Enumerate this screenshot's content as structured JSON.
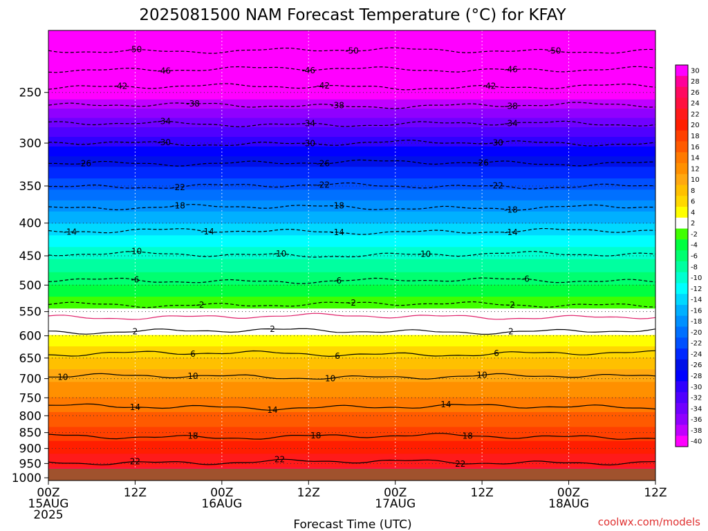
{
  "chart_data": {
    "type": "heatmap",
    "title": "2025081500 NAM Forecast Temperature (°C) for KFAY",
    "xlabel": "Forecast Time (UTC)",
    "ylabel": "",
    "x_ticks": [
      {
        "hour": 0,
        "line1": "00Z",
        "line2": "15AUG",
        "line3": "2025"
      },
      {
        "hour": 12,
        "line1": "12Z",
        "line2": "",
        "line3": ""
      },
      {
        "hour": 24,
        "line1": "00Z",
        "line2": "16AUG",
        "line3": ""
      },
      {
        "hour": 36,
        "line1": "12Z",
        "line2": "",
        "line3": ""
      },
      {
        "hour": 48,
        "line1": "00Z",
        "line2": "17AUG",
        "line3": ""
      },
      {
        "hour": 60,
        "line1": "12Z",
        "line2": "",
        "line3": ""
      },
      {
        "hour": 72,
        "line1": "00Z",
        "line2": "18AUG",
        "line3": ""
      },
      {
        "hour": 84,
        "line1": "12Z",
        "line2": "",
        "line3": ""
      }
    ],
    "xlim_hours": [
      0,
      84
    ],
    "y_ticks": [
      "250",
      "300",
      "350",
      "400",
      "450",
      "500",
      "550",
      "600",
      "650",
      "700",
      "750",
      "800",
      "850",
      "900",
      "950",
      "1000"
    ],
    "y_ticks_hpa": [
      250,
      300,
      350,
      400,
      450,
      500,
      550,
      600,
      650,
      700,
      750,
      800,
      850,
      900,
      950,
      1000
    ],
    "ylim_hpa": [
      200,
      1010
    ],
    "y_scale": "log-pressure (inverted)",
    "grid": true,
    "colorbar_ticks": [
      "30",
      "28",
      "26",
      "24",
      "22",
      "20",
      "18",
      "16",
      "14",
      "12",
      "10",
      "8",
      "6",
      "4",
      "2",
      "-2",
      "-4",
      "-6",
      "-8",
      "-10",
      "-12",
      "-14",
      "-16",
      "-18",
      "-20",
      "-22",
      "-24",
      "-26",
      "-28",
      "-30",
      "-32",
      "-34",
      "-36",
      "-38",
      "-40"
    ],
    "colorbar_colors": [
      "#ff00ff",
      "#ff0099",
      "#ff0a60",
      "#ff1040",
      "#ff1a1a",
      "#ff1e00",
      "#ff4000",
      "#ff5a00",
      "#ff7a00",
      "#ff9000",
      "#ffa810",
      "#ffc000",
      "#ffd800",
      "#ffff00",
      "#ffffff",
      "#40ff00",
      "#00ff40",
      "#00ff70",
      "#00ffa0",
      "#00ffd0",
      "#00ffff",
      "#00d8ff",
      "#00b0ff",
      "#0090ff",
      "#0070ff",
      "#0050ff",
      "#0028ff",
      "#0010e8",
      "#0000ff",
      "#3000ff",
      "#5000ff",
      "#7000ff",
      "#9000ff",
      "#c000ff",
      "#ff00ff"
    ],
    "temperature_profile": [
      {
        "hpa": 200,
        "temp": -52
      },
      {
        "hpa": 215,
        "temp": -50
      },
      {
        "hpa": 230,
        "temp": -46
      },
      {
        "hpa": 245,
        "temp": -42
      },
      {
        "hpa": 262,
        "temp": -38
      },
      {
        "hpa": 280,
        "temp": -34
      },
      {
        "hpa": 300,
        "temp": -30
      },
      {
        "hpa": 322,
        "temp": -26
      },
      {
        "hpa": 350,
        "temp": -22
      },
      {
        "hpa": 378,
        "temp": -18
      },
      {
        "hpa": 412,
        "temp": -14
      },
      {
        "hpa": 448,
        "temp": -10
      },
      {
        "hpa": 492,
        "temp": -6
      },
      {
        "hpa": 536,
        "temp": -2
      },
      {
        "hpa": 560,
        "temp": 0
      },
      {
        "hpa": 590,
        "temp": 2
      },
      {
        "hpa": 640,
        "temp": 6
      },
      {
        "hpa": 695,
        "temp": 10
      },
      {
        "hpa": 775,
        "temp": 14
      },
      {
        "hpa": 862,
        "temp": 18
      },
      {
        "hpa": 945,
        "temp": 22
      },
      {
        "hpa": 1000,
        "temp": 25
      }
    ],
    "contours": [
      {
        "label": "-50",
        "hpa": 215,
        "style": "dashed",
        "label_hours": [
          12,
          42,
          70
        ]
      },
      {
        "label": "-46",
        "hpa": 230,
        "style": "dashed",
        "label_hours": [
          16,
          36,
          64
        ]
      },
      {
        "label": "-42",
        "hpa": 245,
        "style": "dashed",
        "label_hours": [
          10,
          38,
          61
        ]
      },
      {
        "label": "-38",
        "hpa": 262,
        "style": "dashed",
        "label_hours": [
          20,
          40,
          64
        ]
      },
      {
        "label": "-34",
        "hpa": 280,
        "style": "dashed",
        "label_hours": [
          16,
          36,
          64
        ]
      },
      {
        "label": "-30",
        "hpa": 300,
        "style": "dashed",
        "label_hours": [
          16,
          36,
          62
        ]
      },
      {
        "label": "-26",
        "hpa": 322,
        "style": "dashed",
        "label_hours": [
          5,
          38,
          60
        ]
      },
      {
        "label": "-22",
        "hpa": 350,
        "style": "dashed",
        "label_hours": [
          18,
          38,
          62
        ]
      },
      {
        "label": "-18",
        "hpa": 378,
        "style": "dashed",
        "label_hours": [
          18,
          40,
          64
        ]
      },
      {
        "label": "-14",
        "hpa": 412,
        "style": "dashed",
        "label_hours": [
          3,
          22,
          40,
          64
        ]
      },
      {
        "label": "-10",
        "hpa": 448,
        "style": "dashed",
        "label_hours": [
          12,
          32,
          52
        ]
      },
      {
        "label": "-6",
        "hpa": 492,
        "style": "dashed",
        "label_hours": [
          12,
          40,
          66
        ]
      },
      {
        "label": "-2",
        "hpa": 536,
        "style": "dashed",
        "label_hours": [
          21,
          42,
          64
        ]
      },
      {
        "label": "0",
        "hpa": 560,
        "style": "magenta",
        "label_hours": []
      },
      {
        "label": "2",
        "hpa": 590,
        "style": "solid",
        "label_hours": [
          12,
          31,
          64
        ]
      },
      {
        "label": "6",
        "hpa": 640,
        "style": "solid",
        "label_hours": [
          20,
          40,
          62
        ]
      },
      {
        "label": "10",
        "hpa": 695,
        "style": "solid",
        "label_hours": [
          2,
          20,
          39,
          60
        ]
      },
      {
        "label": "14",
        "hpa": 775,
        "style": "solid",
        "label_hours": [
          12,
          31,
          55
        ]
      },
      {
        "label": "18",
        "hpa": 862,
        "style": "solid",
        "label_hours": [
          20,
          37,
          58
        ]
      },
      {
        "label": "22",
        "hpa": 945,
        "style": "solid",
        "label_hours": [
          12,
          32,
          57
        ]
      }
    ],
    "ground_color": "#a0522d"
  },
  "credit": "coolwx.com/models"
}
